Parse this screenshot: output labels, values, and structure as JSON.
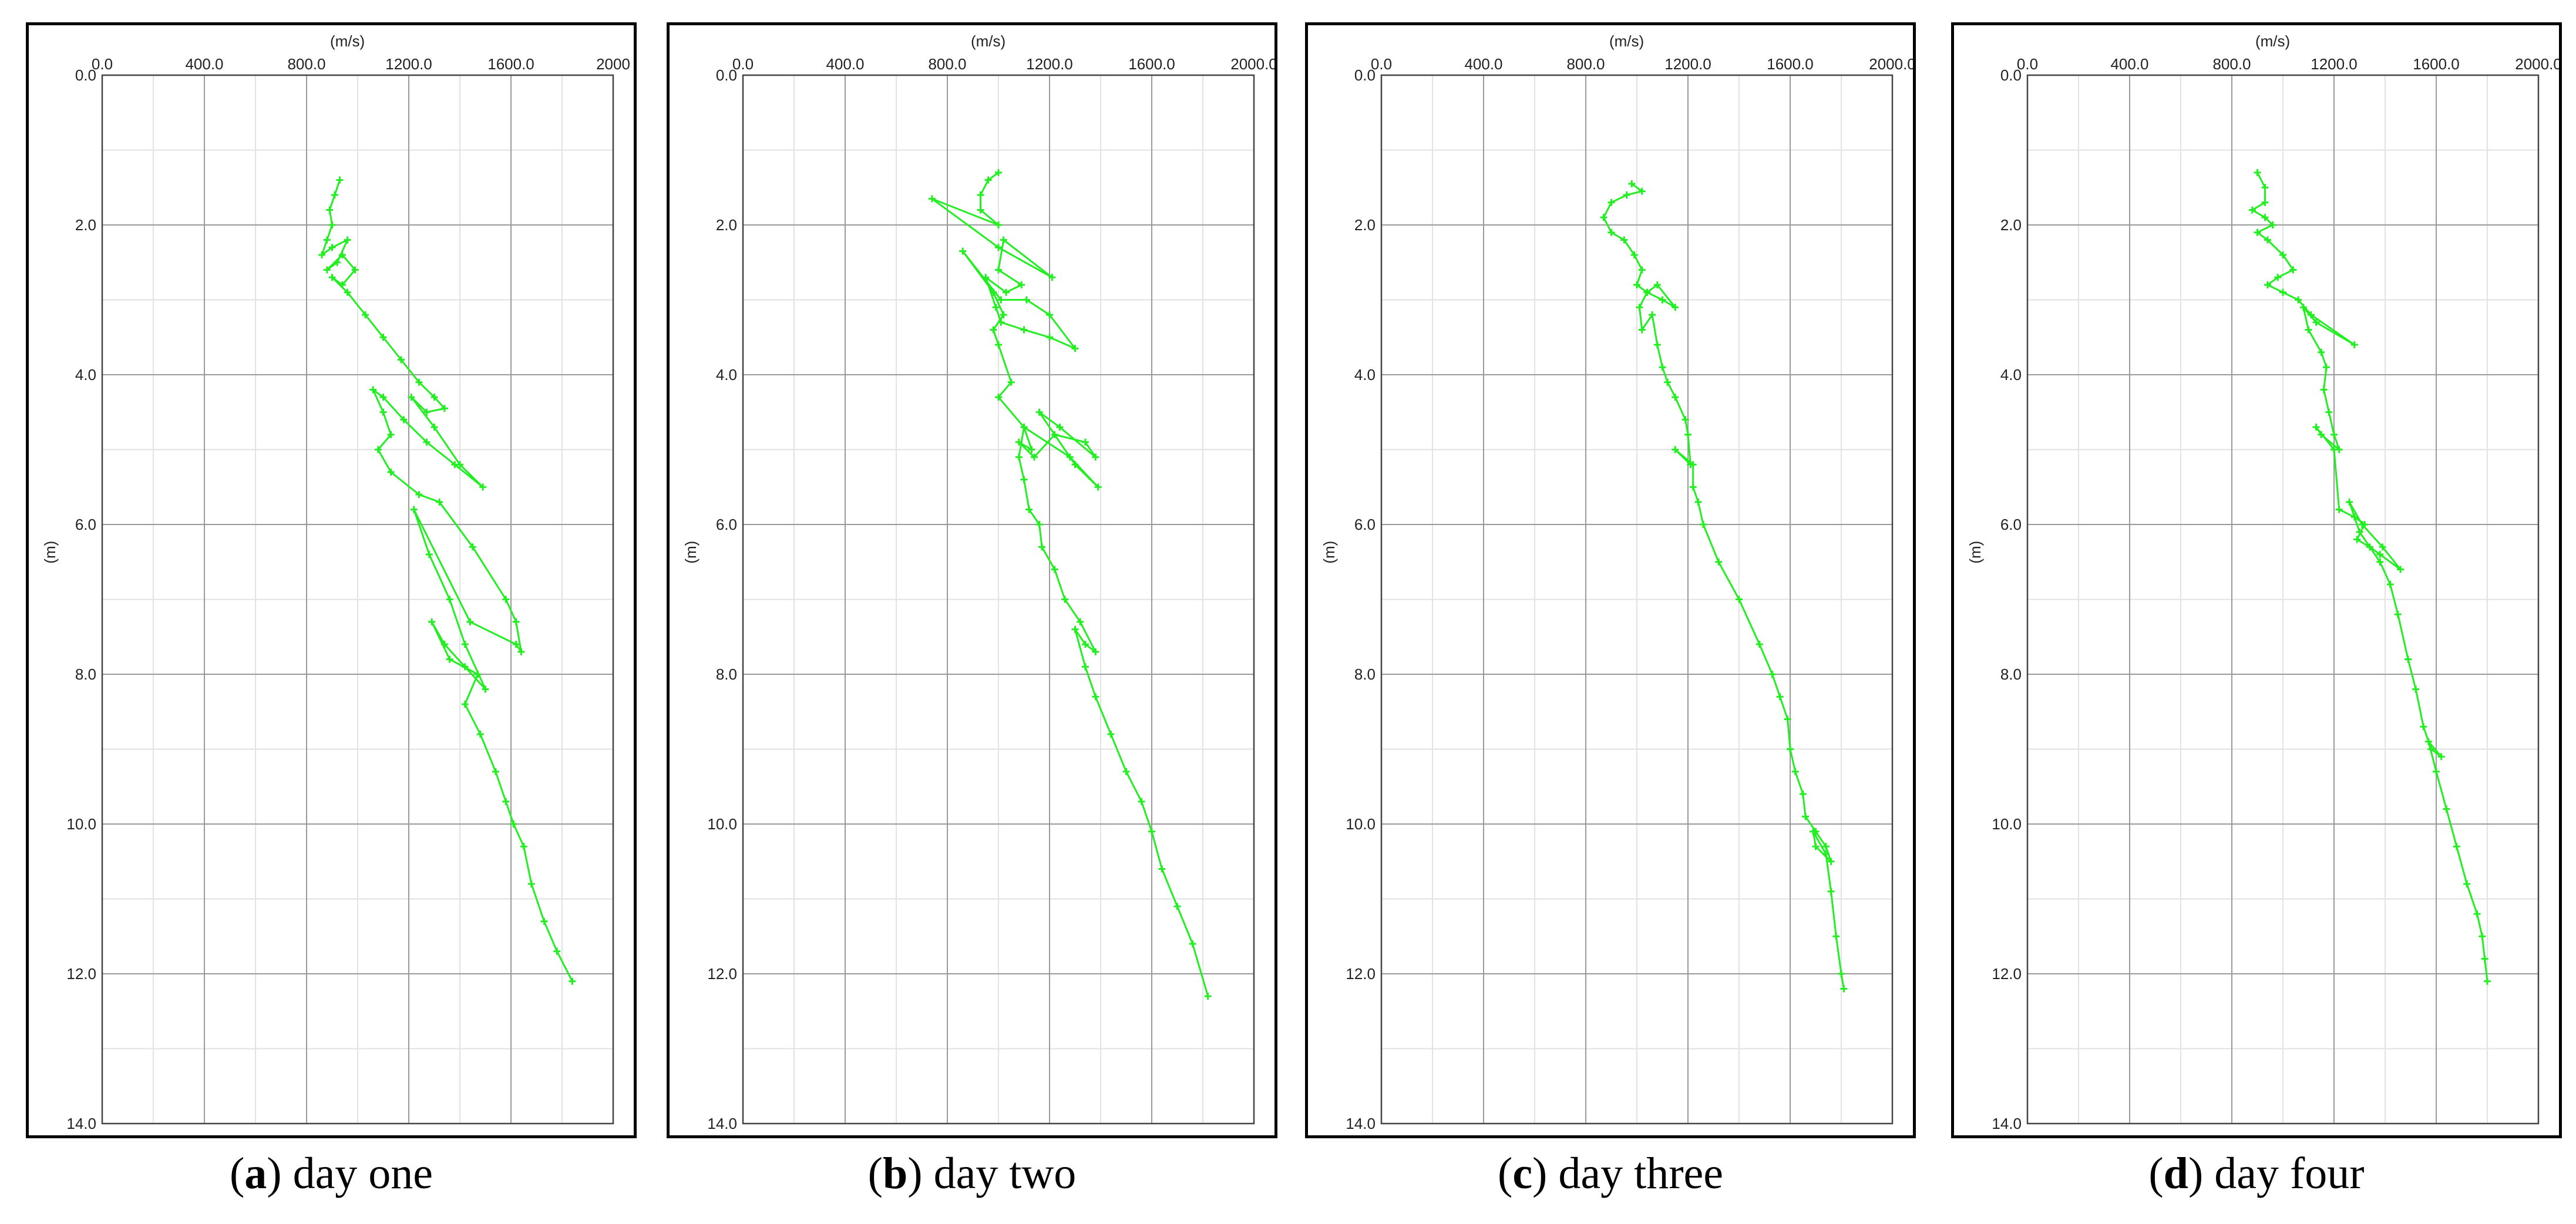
{
  "chart_data": [
    {
      "type": "line",
      "xlabel": "(m/s)",
      "ylabel": "(m)",
      "xlim": [
        0,
        2000
      ],
      "ylim": [
        0,
        14
      ],
      "y_inverted": true,
      "x_axis_position": "top",
      "grid": true,
      "xticks": [
        "0.0",
        "400.0",
        "800.0",
        "1200.0",
        "1600.0",
        "2000"
      ],
      "yticks": [
        "0.0",
        "2.0",
        "4.0",
        "6.0",
        "8.0",
        "10.0",
        "12.0",
        "14.0"
      ],
      "caption_letter": "a",
      "caption_text": "day one",
      "color": "#22ee22",
      "points": [
        [
          930,
          1.4
        ],
        [
          910,
          1.6
        ],
        [
          890,
          1.8
        ],
        [
          900,
          2.0
        ],
        [
          880,
          2.2
        ],
        [
          860,
          2.4
        ],
        [
          900,
          2.3
        ],
        [
          960,
          2.2
        ],
        [
          920,
          2.5
        ],
        [
          880,
          2.6
        ],
        [
          940,
          2.4
        ],
        [
          990,
          2.6
        ],
        [
          940,
          2.8
        ],
        [
          900,
          2.7
        ],
        [
          960,
          2.9
        ],
        [
          1030,
          3.2
        ],
        [
          1100,
          3.5
        ],
        [
          1170,
          3.8
        ],
        [
          1240,
          4.1
        ],
        [
          1300,
          4.3
        ],
        [
          1340,
          4.45
        ],
        [
          1270,
          4.5
        ],
        [
          1210,
          4.3
        ],
        [
          1300,
          4.7
        ],
        [
          1400,
          5.2
        ],
        [
          1490,
          5.5
        ],
        [
          1380,
          5.2
        ],
        [
          1270,
          4.9
        ],
        [
          1180,
          4.6
        ],
        [
          1100,
          4.3
        ],
        [
          1060,
          4.2
        ],
        [
          1100,
          4.5
        ],
        [
          1130,
          4.8
        ],
        [
          1080,
          5.0
        ],
        [
          1130,
          5.3
        ],
        [
          1240,
          5.6
        ],
        [
          1320,
          5.7
        ],
        [
          1450,
          6.3
        ],
        [
          1580,
          7.0
        ],
        [
          1620,
          7.3
        ],
        [
          1640,
          7.7
        ],
        [
          1620,
          7.6
        ],
        [
          1440,
          7.3
        ],
        [
          1220,
          5.8
        ],
        [
          1280,
          6.4
        ],
        [
          1360,
          7.0
        ],
        [
          1420,
          7.6
        ],
        [
          1500,
          8.2
        ],
        [
          1420,
          7.9
        ],
        [
          1340,
          7.6
        ],
        [
          1290,
          7.3
        ],
        [
          1360,
          7.8
        ],
        [
          1470,
          8.0
        ],
        [
          1420,
          8.4
        ],
        [
          1480,
          8.8
        ],
        [
          1540,
          9.3
        ],
        [
          1580,
          9.7
        ],
        [
          1610,
          10.0
        ],
        [
          1650,
          10.3
        ],
        [
          1680,
          10.8
        ],
        [
          1730,
          11.3
        ],
        [
          1780,
          11.7
        ],
        [
          1840,
          12.1
        ]
      ]
    },
    {
      "type": "line",
      "xlabel": "(m/s)",
      "ylabel": "(m)",
      "xlim": [
        0,
        2000
      ],
      "ylim": [
        0,
        14
      ],
      "y_inverted": true,
      "x_axis_position": "top",
      "grid": true,
      "xticks": [
        "0.0",
        "400.0",
        "800.0",
        "1200.0",
        "1600.0",
        "2000.0"
      ],
      "yticks": [
        "0.0",
        "2.0",
        "4.0",
        "6.0",
        "8.0",
        "10.0",
        "12.0",
        "14.0"
      ],
      "caption_letter": "b",
      "caption_text": "day two",
      "color": "#22ee22",
      "points": [
        [
          1000,
          1.3
        ],
        [
          960,
          1.4
        ],
        [
          930,
          1.6
        ],
        [
          930,
          1.8
        ],
        [
          1000,
          2.0
        ],
        [
          740,
          1.65
        ],
        [
          1000,
          2.3
        ],
        [
          1210,
          2.7
        ],
        [
          1020,
          2.2
        ],
        [
          1000,
          2.6
        ],
        [
          1090,
          2.8
        ],
        [
          1030,
          2.9
        ],
        [
          950,
          2.7
        ],
        [
          990,
          3.1
        ],
        [
          1010,
          3.3
        ],
        [
          1100,
          3.4
        ],
        [
          1200,
          3.5
        ],
        [
          1300,
          3.65
        ],
        [
          1200,
          3.2
        ],
        [
          1110,
          3.0
        ],
        [
          1010,
          3.0
        ],
        [
          860,
          2.35
        ],
        [
          980,
          2.9
        ],
        [
          1020,
          3.2
        ],
        [
          980,
          3.4
        ],
        [
          1000,
          3.6
        ],
        [
          1050,
          4.1
        ],
        [
          1000,
          4.3
        ],
        [
          1100,
          4.7
        ],
        [
          1130,
          5.0
        ],
        [
          1080,
          4.9
        ],
        [
          1140,
          5.1
        ],
        [
          1220,
          4.8
        ],
        [
          1340,
          4.9
        ],
        [
          1380,
          5.1
        ],
        [
          1240,
          4.7
        ],
        [
          1160,
          4.5
        ],
        [
          1300,
          5.2
        ],
        [
          1390,
          5.5
        ],
        [
          1280,
          5.1
        ],
        [
          1100,
          4.7
        ],
        [
          1080,
          5.1
        ],
        [
          1100,
          5.4
        ],
        [
          1120,
          5.8
        ],
        [
          1160,
          6.0
        ],
        [
          1170,
          6.3
        ],
        [
          1220,
          6.6
        ],
        [
          1260,
          7.0
        ],
        [
          1320,
          7.3
        ],
        [
          1380,
          7.7
        ],
        [
          1340,
          7.6
        ],
        [
          1300,
          7.4
        ],
        [
          1340,
          7.9
        ],
        [
          1380,
          8.3
        ],
        [
          1440,
          8.8
        ],
        [
          1500,
          9.3
        ],
        [
          1560,
          9.7
        ],
        [
          1600,
          10.1
        ],
        [
          1640,
          10.6
        ],
        [
          1700,
          11.1
        ],
        [
          1760,
          11.6
        ],
        [
          1820,
          12.3
        ]
      ]
    },
    {
      "type": "line",
      "xlabel": "(m/s)",
      "ylabel": "(m)",
      "xlim": [
        0,
        2000
      ],
      "ylim": [
        0,
        14
      ],
      "y_inverted": true,
      "x_axis_position": "top",
      "grid": true,
      "xticks": [
        "0.0",
        "400.0",
        "800.0",
        "1200.0",
        "1600.0",
        "2000.0"
      ],
      "yticks": [
        "0.0",
        "2.0",
        "4.0",
        "6.0",
        "8.0",
        "10.0",
        "12.0",
        "14.0"
      ],
      "caption_letter": "c",
      "caption_text": "day three",
      "color": "#22ee22",
      "points": [
        [
          980,
          1.45
        ],
        [
          1020,
          1.55
        ],
        [
          960,
          1.6
        ],
        [
          900,
          1.7
        ],
        [
          870,
          1.9
        ],
        [
          900,
          2.1
        ],
        [
          950,
          2.2
        ],
        [
          990,
          2.4
        ],
        [
          1020,
          2.6
        ],
        [
          1000,
          2.8
        ],
        [
          1040,
          2.9
        ],
        [
          1100,
          3.0
        ],
        [
          1150,
          3.1
        ],
        [
          1080,
          2.8
        ],
        [
          1040,
          2.9
        ],
        [
          1010,
          3.1
        ],
        [
          1020,
          3.4
        ],
        [
          1060,
          3.2
        ],
        [
          1080,
          3.6
        ],
        [
          1100,
          3.9
        ],
        [
          1120,
          4.1
        ],
        [
          1150,
          4.3
        ],
        [
          1190,
          4.6
        ],
        [
          1200,
          4.8
        ],
        [
          1210,
          5.2
        ],
        [
          1150,
          5.0
        ],
        [
          1220,
          5.2
        ],
        [
          1220,
          5.5
        ],
        [
          1240,
          5.7
        ],
        [
          1260,
          6.0
        ],
        [
          1320,
          6.5
        ],
        [
          1400,
          7.0
        ],
        [
          1480,
          7.6
        ],
        [
          1530,
          8.0
        ],
        [
          1560,
          8.3
        ],
        [
          1590,
          8.6
        ],
        [
          1600,
          9.0
        ],
        [
          1620,
          9.3
        ],
        [
          1650,
          9.6
        ],
        [
          1660,
          9.9
        ],
        [
          1700,
          10.1
        ],
        [
          1740,
          10.3
        ],
        [
          1760,
          10.5
        ],
        [
          1700,
          10.3
        ],
        [
          1690,
          10.1
        ],
        [
          1740,
          10.4
        ],
        [
          1760,
          10.9
        ],
        [
          1780,
          11.5
        ],
        [
          1800,
          12.0
        ],
        [
          1810,
          12.2
        ]
      ]
    },
    {
      "type": "line",
      "xlabel": "(m/s)",
      "ylabel": "(m)",
      "xlim": [
        0,
        2000
      ],
      "ylim": [
        0,
        14
      ],
      "y_inverted": true,
      "x_axis_position": "top",
      "grid": true,
      "xticks": [
        "0.0",
        "400.0",
        "800.0",
        "1200.0",
        "1600.0",
        "2000.0"
      ],
      "yticks": [
        "0.0",
        "2.0",
        "4.0",
        "6.0",
        "8.0",
        "10.0",
        "12.0",
        "14.0"
      ],
      "caption_letter": "d",
      "caption_text": "day four",
      "color": "#22ee22",
      "points": [
        [
          900,
          1.3
        ],
        [
          930,
          1.5
        ],
        [
          930,
          1.7
        ],
        [
          880,
          1.8
        ],
        [
          930,
          1.9
        ],
        [
          960,
          2.0
        ],
        [
          900,
          2.1
        ],
        [
          940,
          2.2
        ],
        [
          1000,
          2.4
        ],
        [
          1040,
          2.6
        ],
        [
          980,
          2.7
        ],
        [
          940,
          2.8
        ],
        [
          1000,
          2.9
        ],
        [
          1060,
          3.0
        ],
        [
          1110,
          3.2
        ],
        [
          1280,
          3.6
        ],
        [
          1130,
          3.3
        ],
        [
          1080,
          3.1
        ],
        [
          1100,
          3.4
        ],
        [
          1150,
          3.7
        ],
        [
          1170,
          3.9
        ],
        [
          1160,
          4.2
        ],
        [
          1180,
          4.5
        ],
        [
          1200,
          4.8
        ],
        [
          1220,
          5.0
        ],
        [
          1150,
          4.8
        ],
        [
          1130,
          4.7
        ],
        [
          1200,
          5.0
        ],
        [
          1220,
          5.8
        ],
        [
          1280,
          5.9
        ],
        [
          1320,
          6.0
        ],
        [
          1290,
          6.2
        ],
        [
          1340,
          6.3
        ],
        [
          1380,
          6.4
        ],
        [
          1460,
          6.6
        ],
        [
          1390,
          6.3
        ],
        [
          1310,
          6.0
        ],
        [
          1260,
          5.7
        ],
        [
          1300,
          6.1
        ],
        [
          1380,
          6.5
        ],
        [
          1420,
          6.8
        ],
        [
          1450,
          7.2
        ],
        [
          1490,
          7.8
        ],
        [
          1520,
          8.2
        ],
        [
          1550,
          8.7
        ],
        [
          1580,
          9.0
        ],
        [
          1620,
          9.1
        ],
        [
          1570,
          8.9
        ],
        [
          1600,
          9.3
        ],
        [
          1640,
          9.8
        ],
        [
          1680,
          10.3
        ],
        [
          1720,
          10.8
        ],
        [
          1760,
          11.2
        ],
        [
          1780,
          11.5
        ],
        [
          1790,
          11.8
        ],
        [
          1800,
          12.1
        ]
      ]
    }
  ]
}
